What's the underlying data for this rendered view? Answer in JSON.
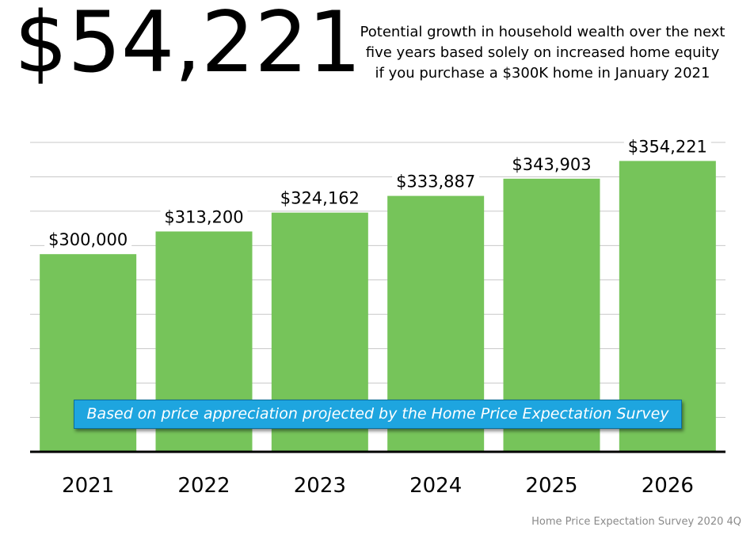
{
  "headline": "$54,221",
  "subtitle_lines": [
    "Potential growth in household wealth over the next",
    "five years based solely on increased home equity",
    "if you purchase a $300K home in January 2021"
  ],
  "banner": "Based on price appreciation projected by the Home Price Expectation Survey",
  "source": "Home Price Expectation Survey 2020 4Q",
  "colors": {
    "bar": "#76c45a",
    "banner": "#1ea5df",
    "gridline": "#c8c8c8",
    "axis": "#000000"
  },
  "chart_data": {
    "type": "bar",
    "categories": [
      "2021",
      "2022",
      "2023",
      "2024",
      "2025",
      "2026"
    ],
    "values": [
      300000,
      313200,
      324162,
      333887,
      343903,
      354221
    ],
    "data_labels": [
      "$300,000",
      "$313,200",
      "$324,162",
      "$333,887",
      "$343,903",
      "$354,221"
    ],
    "title": "",
    "xlabel": "",
    "ylabel": "",
    "ylim": [
      185000,
      365000
    ],
    "grid": true,
    "grid_step": 20000,
    "legend": "none"
  }
}
